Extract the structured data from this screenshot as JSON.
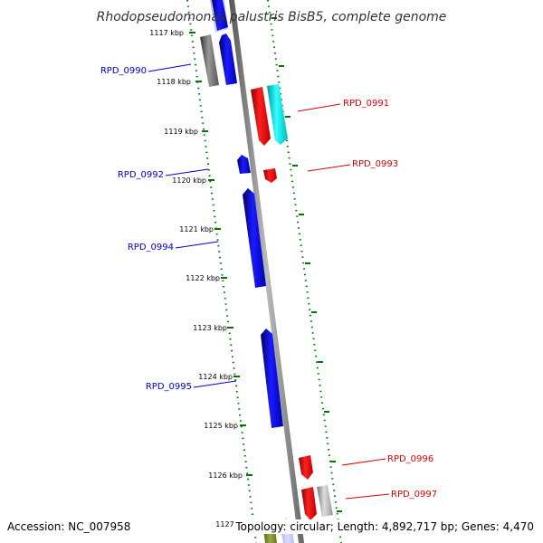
{
  "title": "Rhodopseudomonas palustris BisB5, complete genome",
  "scale_ticks": [
    "1117 kbp",
    "1118 kbp",
    "1119 kbp",
    "1120 kbp",
    "1121 kbp",
    "1122 kbp",
    "1123 kbp",
    "1124 kbp",
    "1125 kbp",
    "1126 kbp",
    "1127 kbp"
  ],
  "genes": [
    {
      "name": "RPD_0990",
      "strand": "forward",
      "color": "#0000cc"
    },
    {
      "name": "RPD_0991",
      "strand": "reverse",
      "color": "#dd0000"
    },
    {
      "name": "RPD_0992",
      "strand": "forward",
      "color": "#0000cc"
    },
    {
      "name": "RPD_0993",
      "strand": "reverse",
      "color": "#dd0000"
    },
    {
      "name": "RPD_0994",
      "strand": "forward",
      "color": "#0000cc"
    },
    {
      "name": "RPD_0995",
      "strand": "forward",
      "color": "#0000cc"
    },
    {
      "name": "RPD_0996",
      "strand": "reverse",
      "color": "#dd0000"
    },
    {
      "name": "RPD_0997",
      "strand": "reverse",
      "color": "#dd0000"
    }
  ],
  "feature_colors": {
    "forward_cds": "#0000cc",
    "reverse_cds": "#dd0000",
    "other_gray": "#777777",
    "cyan_feature": "#00cccc",
    "backbone": "#888888",
    "tick_green": "#007700"
  },
  "footer": {
    "accession": "Accession: NC_007958",
    "stats": "Topology: circular; Length: 4,892,717 bp; Genes: 4,470"
  }
}
